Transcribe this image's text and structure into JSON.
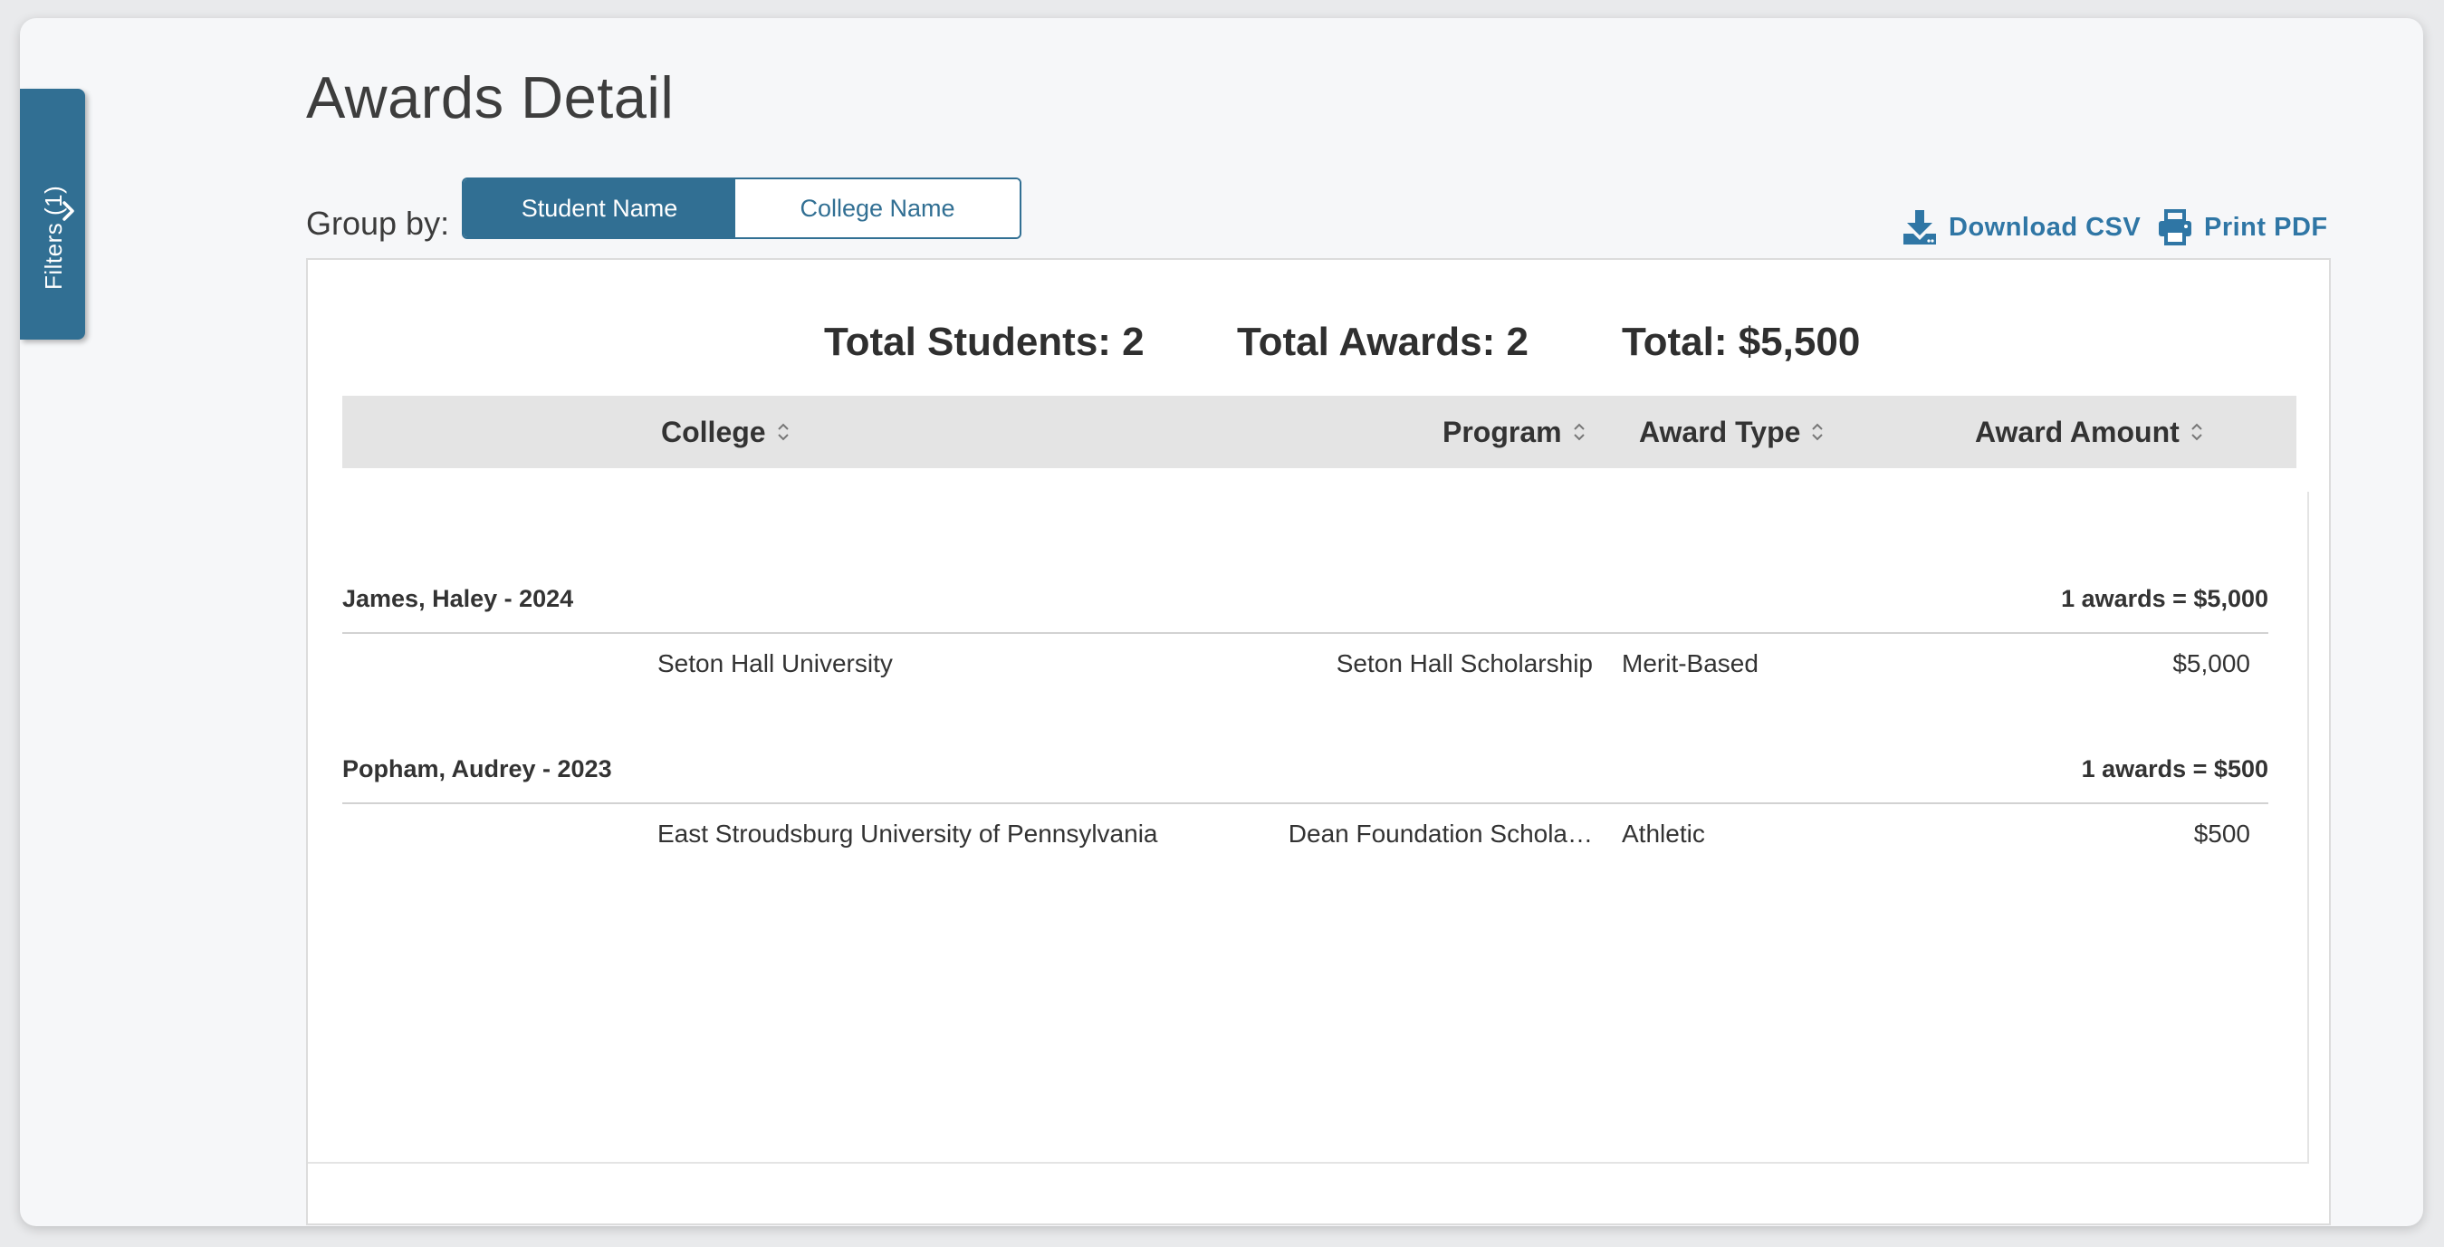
{
  "filters": {
    "label": "Filters (1)"
  },
  "page": {
    "title": "Awards Detail"
  },
  "group_by": {
    "label": "Group by:",
    "options": [
      "Student Name",
      "College Name"
    ],
    "selected": "Student Name"
  },
  "actions": {
    "download_csv": "Download CSV",
    "print_pdf": "Print PDF"
  },
  "summary": {
    "students": "Total Students: 2",
    "awards": "Total Awards: 2",
    "total": "Total: $5,500"
  },
  "table": {
    "columns": [
      "College",
      "Program",
      "Award Type",
      "Award Amount"
    ],
    "groups": [
      {
        "name": "James, Haley - 2024",
        "total": "1 awards = $5,000",
        "rows": [
          {
            "college": "Seton Hall University",
            "program": "Seton Hall Scholarship",
            "type": "Merit-Based",
            "amount": "$5,000"
          }
        ]
      },
      {
        "name": "Popham, Audrey - 2023",
        "total": "1 awards = $500",
        "rows": [
          {
            "college": "East Stroudsburg University of Pennsylvania",
            "program": "Dean Foundation Schola…",
            "type": "Athletic",
            "amount": "$500"
          }
        ]
      }
    ]
  },
  "colors": {
    "primary": "#316f93",
    "link": "#2f76a5",
    "header_bg": "#e4e4e4",
    "page_bg": "#f6f7f9"
  }
}
